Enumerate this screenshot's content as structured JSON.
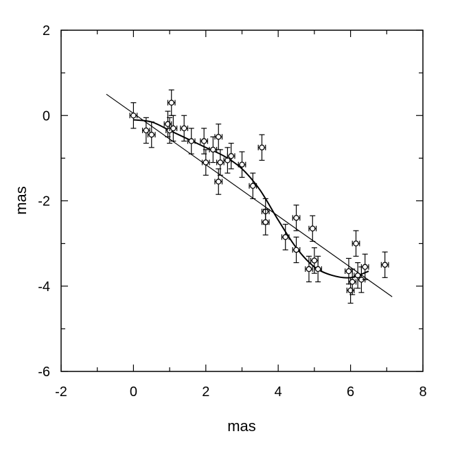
{
  "chart_data": {
    "type": "scatter",
    "title": "",
    "xlabel": "mas",
    "ylabel": "mas",
    "xlim": [
      -2,
      8
    ],
    "ylim": [
      -6,
      2
    ],
    "x_ticks": [
      "-2",
      "0",
      "2",
      "4",
      "6",
      "8"
    ],
    "y_ticks": [
      "2",
      "0",
      "-2",
      "-4",
      "-6"
    ],
    "grid": false,
    "legend": "none",
    "series": [
      {
        "kind": "points_with_errorbars",
        "points": [
          {
            "x": 0.0,
            "y": 0.0,
            "xerr": 0.1,
            "yerr": 0.3
          },
          {
            "x": 0.35,
            "y": -0.35,
            "xerr": 0.1,
            "yerr": 0.3
          },
          {
            "x": 0.5,
            "y": -0.45,
            "xerr": 0.1,
            "yerr": 0.3
          },
          {
            "x": 0.95,
            "y": -0.2,
            "xerr": 0.1,
            "yerr": 0.3
          },
          {
            "x": 1.0,
            "y": -0.35,
            "xerr": 0.1,
            "yerr": 0.3
          },
          {
            "x": 1.05,
            "y": 0.3,
            "xerr": 0.1,
            "yerr": 0.3
          },
          {
            "x": 1.1,
            "y": -0.3,
            "xerr": 0.1,
            "yerr": 0.3
          },
          {
            "x": 1.4,
            "y": -0.3,
            "xerr": 0.1,
            "yerr": 0.3
          },
          {
            "x": 1.6,
            "y": -0.6,
            "xerr": 0.1,
            "yerr": 0.3
          },
          {
            "x": 1.95,
            "y": -0.6,
            "xerr": 0.1,
            "yerr": 0.3
          },
          {
            "x": 2.0,
            "y": -1.1,
            "xerr": 0.1,
            "yerr": 0.3
          },
          {
            "x": 2.2,
            "y": -0.8,
            "xerr": 0.1,
            "yerr": 0.3
          },
          {
            "x": 2.35,
            "y": -0.5,
            "xerr": 0.1,
            "yerr": 0.3
          },
          {
            "x": 2.35,
            "y": -1.55,
            "xerr": 0.1,
            "yerr": 0.3
          },
          {
            "x": 2.4,
            "y": -1.1,
            "xerr": 0.1,
            "yerr": 0.3
          },
          {
            "x": 2.6,
            "y": -1.05,
            "xerr": 0.1,
            "yerr": 0.3
          },
          {
            "x": 2.7,
            "y": -0.95,
            "xerr": 0.1,
            "yerr": 0.3
          },
          {
            "x": 3.0,
            "y": -1.15,
            "xerr": 0.1,
            "yerr": 0.3
          },
          {
            "x": 3.3,
            "y": -1.65,
            "xerr": 0.1,
            "yerr": 0.3
          },
          {
            "x": 3.55,
            "y": -0.75,
            "xerr": 0.1,
            "yerr": 0.3
          },
          {
            "x": 3.65,
            "y": -2.25,
            "xerr": 0.1,
            "yerr": 0.3
          },
          {
            "x": 3.65,
            "y": -2.5,
            "xerr": 0.1,
            "yerr": 0.3
          },
          {
            "x": 4.2,
            "y": -2.85,
            "xerr": 0.1,
            "yerr": 0.3
          },
          {
            "x": 4.5,
            "y": -2.4,
            "xerr": 0.1,
            "yerr": 0.3
          },
          {
            "x": 4.5,
            "y": -3.15,
            "xerr": 0.1,
            "yerr": 0.3
          },
          {
            "x": 4.95,
            "y": -2.65,
            "xerr": 0.1,
            "yerr": 0.3
          },
          {
            "x": 4.85,
            "y": -3.6,
            "xerr": 0.1,
            "yerr": 0.3
          },
          {
            "x": 5.0,
            "y": -3.4,
            "xerr": 0.1,
            "yerr": 0.3
          },
          {
            "x": 5.1,
            "y": -3.6,
            "xerr": 0.1,
            "yerr": 0.3
          },
          {
            "x": 5.95,
            "y": -3.65,
            "xerr": 0.1,
            "yerr": 0.3
          },
          {
            "x": 6.0,
            "y": -4.1,
            "xerr": 0.1,
            "yerr": 0.3
          },
          {
            "x": 6.05,
            "y": -3.9,
            "xerr": 0.1,
            "yerr": 0.3
          },
          {
            "x": 6.15,
            "y": -3.0,
            "xerr": 0.1,
            "yerr": 0.3
          },
          {
            "x": 6.2,
            "y": -3.75,
            "xerr": 0.1,
            "yerr": 0.3
          },
          {
            "x": 6.3,
            "y": -3.85,
            "xerr": 0.1,
            "yerr": 0.3
          },
          {
            "x": 6.4,
            "y": -3.55,
            "xerr": 0.1,
            "yerr": 0.3
          },
          {
            "x": 6.95,
            "y": -3.5,
            "xerr": 0.1,
            "yerr": 0.3
          }
        ]
      },
      {
        "kind": "linear_fit",
        "x": [
          -0.75,
          7.15
        ],
        "y": [
          0.5,
          -4.25
        ]
      },
      {
        "kind": "smooth_curve",
        "x": [
          0.0,
          0.5,
          1.0,
          1.5,
          2.0,
          2.5,
          3.0,
          3.5,
          4.0,
          4.5,
          5.0,
          5.5,
          6.0,
          6.5
        ],
        "y": [
          -0.1,
          -0.15,
          -0.35,
          -0.55,
          -0.75,
          -0.95,
          -1.25,
          -1.75,
          -2.45,
          -3.1,
          -3.55,
          -3.75,
          -3.8,
          -3.65
        ]
      }
    ]
  }
}
